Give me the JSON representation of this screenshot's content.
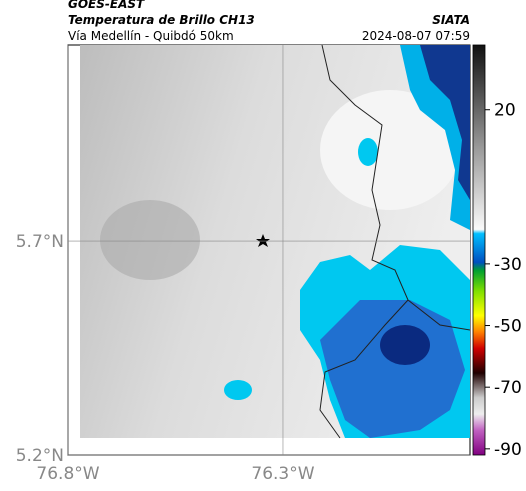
{
  "header": {
    "title": "GOES-EAST",
    "subtitle": "Temperatura de Brillo CH13",
    "route": "Vía Medellín - Quibdó 50km",
    "source": "SIATA",
    "datetime": "2024-08-07 07:59"
  },
  "map": {
    "lonlim": [
      -76.8,
      -75.865
    ],
    "latlim": [
      5.2,
      6.158
    ],
    "lat_ticks": [
      {
        "value": 5.7,
        "label": "5.7°N"
      },
      {
        "value": 5.2,
        "label": "5.2°N"
      }
    ],
    "lon_ticks": [
      {
        "value": -76.8,
        "label": "76.8°W"
      },
      {
        "value": -76.3,
        "label": "76.3°W"
      }
    ]
  },
  "colorbar": {
    "lim": [
      41,
      -92
    ],
    "ticks": [
      20,
      -30,
      -50,
      -70,
      -90
    ]
  }
}
